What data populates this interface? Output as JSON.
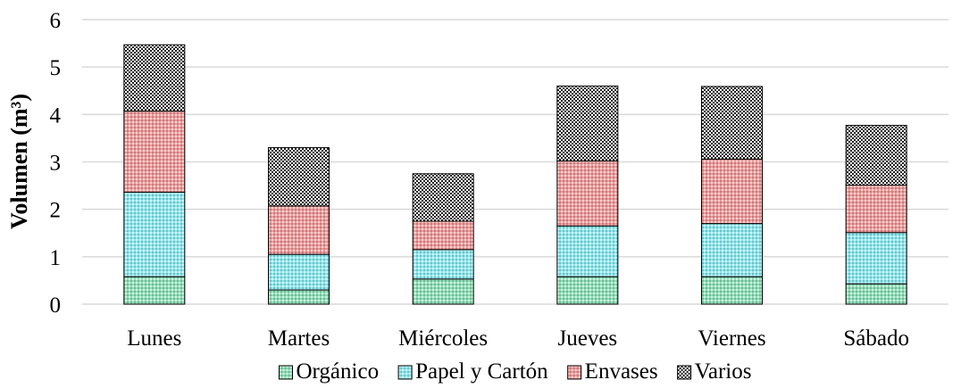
{
  "chart_data": {
    "type": "bar",
    "stacked": true,
    "title": "",
    "xlabel": "",
    "ylabel": "Volumen (m³)",
    "ylim": [
      0,
      6
    ],
    "yticks": [
      0,
      1,
      2,
      3,
      4,
      5,
      6
    ],
    "grid": true,
    "legend_position": "bottom",
    "categories": [
      "Lunes",
      "Martes",
      "Miércoles",
      "Jueves",
      "Viernes",
      "Sábado"
    ],
    "series": [
      {
        "name": "Orgánico",
        "color": "#8fdfb8",
        "values": [
          0.58,
          0.3,
          0.53,
          0.58,
          0.58,
          0.43
        ]
      },
      {
        "name": "Papel y Cartón",
        "color": "#8ee8f0",
        "values": [
          1.78,
          0.75,
          0.62,
          1.07,
          1.12,
          1.08
        ]
      },
      {
        "name": "Envases",
        "color": "#ef9a9a",
        "values": [
          1.71,
          1.02,
          0.6,
          1.37,
          1.36,
          1.0
        ]
      },
      {
        "name": "Varios",
        "color": "#707070",
        "values": [
          1.4,
          1.23,
          1.0,
          1.58,
          1.53,
          1.26
        ]
      }
    ]
  }
}
